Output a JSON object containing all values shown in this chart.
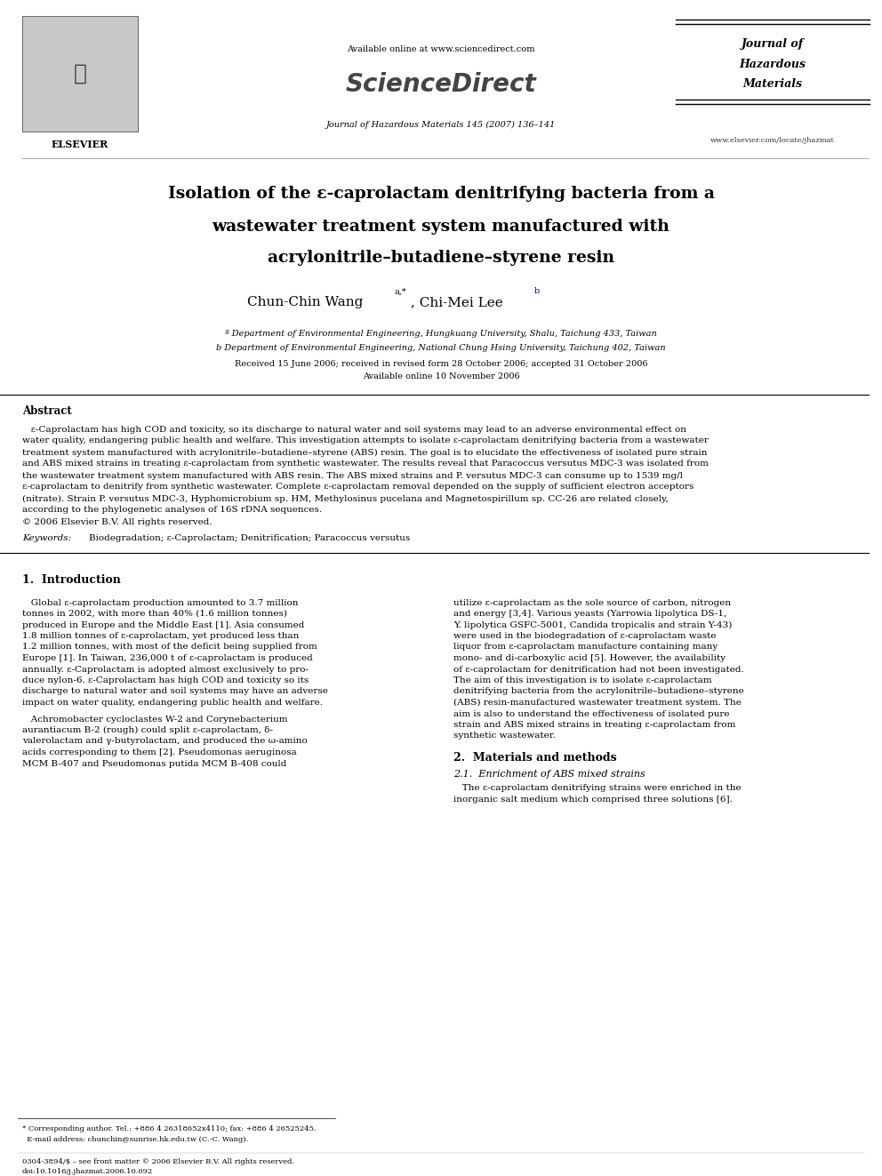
{
  "background_color": "#ffffff",
  "page_width": 9.92,
  "page_height": 13.23,
  "dpi": 100,
  "header": {
    "available_online": "Available online at www.sciencedirect.com",
    "sciencedirect": "ScienceDirect",
    "journal_name_line1": "Journal of",
    "journal_name_line2": "Hazardous",
    "journal_name_line3": "Materials",
    "journal_info": "Journal of Hazardous Materials 145 (2007) 136–141",
    "website": "www.elsevier.com/locate/jhazmat"
  },
  "title_line1": "Isolation of the ε-caprolactam denitrifying bacteria from a",
  "title_line2": "wastewater treatment system manufactured with",
  "title_line3": "acrylonitrile–butadiene–styrene resin",
  "affil_a": "ª Department of Environmental Engineering, Hungkuang University, Shalu, Taichung 433, Taiwan",
  "affil_b": "b Department of Environmental Engineering, National Chung Hsing University, Taichung 402, Taiwan",
  "received": "Received 15 June 2006; received in revised form 28 October 2006; accepted 31 October 2006",
  "available_date": "Available online 10 November 2006",
  "abstract_title": "Abstract",
  "abstract_indent": "   ε-Caprolactam has high COD and toxicity, so its discharge to natural water and soil systems may lead to an adverse environmental effect on",
  "abstract_lines": [
    "water quality, endangering public health and welfare. This investigation attempts to isolate ε-caprolactam denitrifying bacteria from a wastewater",
    "treatment system manufactured with acrylonitrile–butadiene–styrene (ABS) resin. The goal is to elucidate the effectiveness of isolated pure strain",
    "and ABS mixed strains in treating ε-caprolactam from synthetic wastewater. The results reveal that Paracoccus versutus MDC-3 was isolated from",
    "the wastewater treatment system manufactured with ABS resin. The ABS mixed strains and P. versutus MDC-3 can consume up to 1539 mg/l",
    "ε-caprolactam to denitrify from synthetic wastewater. Complete ε-caprolactam removal depended on the supply of sufficient electron acceptors",
    "(nitrate). Strain P. versutus MDC-3, Hyphomicrobium sp. HM, Methylosinus pucelana and Magnetospirillum sp. CC-26 are related closely,",
    "according to the phylogenetic analyses of 16S rDNA sequences.",
    "© 2006 Elsevier B.V. All rights reserved."
  ],
  "keywords_label": "Keywords:",
  "keywords_text": "  Biodegradation; ε-Caprolactam; Denitrification; Paracoccus versutus",
  "section1_title": "1.  Introduction",
  "s1c1_lines": [
    "   Global ε-caprolactam production amounted to 3.7 million",
    "tonnes in 2002, with more than 40% (1.6 million tonnes)",
    "produced in Europe and the Middle East [1]. Asia consumed",
    "1.8 million tonnes of ε-caprolactam, yet produced less than",
    "1.2 million tonnes, with most of the deficit being supplied from",
    "Europe [1]. In Taiwan, 236,000 t of ε-caprolactam is produced",
    "annually. ε-Caprolactam is adopted almost exclusively to pro-",
    "duce nylon-6. ε-Caprolactam has high COD and toxicity so its",
    "discharge to natural water and soil systems may have an adverse",
    "impact on water quality, endangering public health and welfare."
  ],
  "s1c1_para2_lines": [
    "   Achromobacter cycloclastes W-2 and Corynebacterium",
    "aurantiacum B-2 (rough) could split ε-caprolactam, δ-",
    "valerolactam and γ-butyrolactam, and produced the ω-amino",
    "acids corresponding to them [2]. Pseudomonas aeruginosa",
    "MCM B-407 and Pseudomonas putida MCM B-408 could"
  ],
  "s1c2_lines": [
    "utilize ε-caprolactam as the sole source of carbon, nitrogen",
    "and energy [3,4]. Various yeasts (Yarrowia lipolytica DS-1,",
    "Y. lipolytica GSFC-5001, Candida tropicalis and strain Y-43)",
    "were used in the biodegradation of ε-caprolactam waste",
    "liquor from ε-caprolactam manufacture containing many",
    "mono- and di-carboxylic acid [5]. However, the availability",
    "of ε-caprolactam for denitrification had not been investigated.",
    "The aim of this investigation is to isolate ε-caprolactam",
    "denitrifying bacteria from the acrylonitrile–butadiene–styrene",
    "(ABS) resin-manufactured wastewater treatment system. The",
    "aim is also to understand the effectiveness of isolated pure",
    "strain and ABS mixed strains in treating ε-caprolactam from",
    "synthetic wastewater."
  ],
  "section2_title": "2.  Materials and methods",
  "section2_sub1": "2.1.  Enrichment of ABS mixed strains",
  "s2s1_lines": [
    "   The ε-caprolactam denitrifying strains were enriched in the",
    "inorganic salt medium which comprised three solutions [6]."
  ],
  "footnote1": "* Corresponding author. Tel.: +886 4 26318652x4110; fax: +886 4 26525245.",
  "footnote2": "  E-mail address: chunchin@sunrise.hk.edu.tw (C.-C. Wang).",
  "footer1": "0304-3894/$ – see front matter © 2006 Elsevier B.V. All rights reserved.",
  "footer2": "doi:10.1016/j.jhazmat.2006.10.092"
}
